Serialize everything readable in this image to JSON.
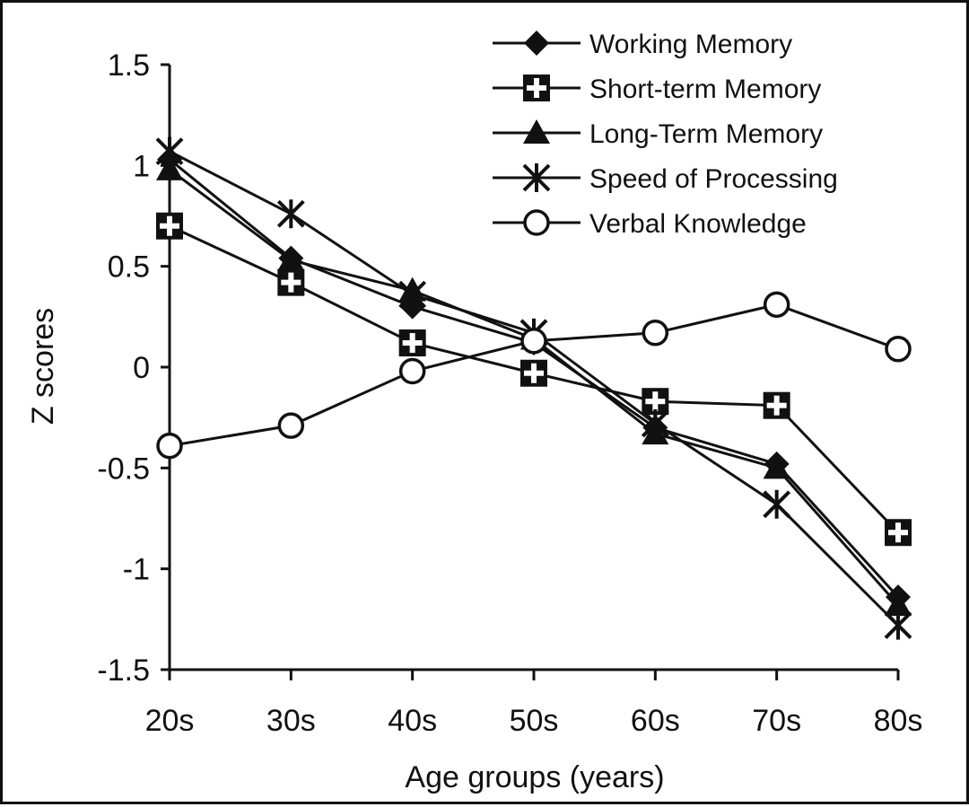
{
  "chart_data": {
    "type": "line",
    "xlabel": "Age groups (years)",
    "ylabel": "Z scores",
    "categories": [
      "20s",
      "30s",
      "40s",
      "50s",
      "60s",
      "70s",
      "80s"
    ],
    "ylim": [
      -1.5,
      1.5
    ],
    "yticks": [
      "1.5",
      "1",
      "0.5",
      "0",
      "-0.5",
      "-1",
      "-1.5"
    ],
    "ytick_values": [
      1.5,
      1,
      0.5,
      0,
      -0.5,
      -1,
      -1.5
    ],
    "grid": false,
    "legend_position": "top-right",
    "series": [
      {
        "name": "Working Memory",
        "marker": "diamond",
        "values": [
          1.03,
          0.54,
          0.3,
          0.12,
          -0.3,
          -0.48,
          -1.14
        ]
      },
      {
        "name": "Short-term Memory",
        "marker": "square-cross",
        "values": [
          0.7,
          0.42,
          0.12,
          -0.03,
          -0.17,
          -0.19,
          -0.82
        ]
      },
      {
        "name": "Long-Term Memory",
        "marker": "triangle",
        "values": [
          0.98,
          0.53,
          0.38,
          0.14,
          -0.33,
          -0.5,
          -1.18
        ]
      },
      {
        "name": "Speed of Processing",
        "marker": "asterisk",
        "values": [
          1.07,
          0.76,
          0.36,
          0.17,
          -0.28,
          -0.68,
          -1.28
        ]
      },
      {
        "name": "Verbal Knowledge",
        "marker": "circle",
        "values": [
          -0.39,
          -0.29,
          -0.02,
          0.13,
          0.17,
          0.31,
          0.09
        ]
      }
    ]
  }
}
